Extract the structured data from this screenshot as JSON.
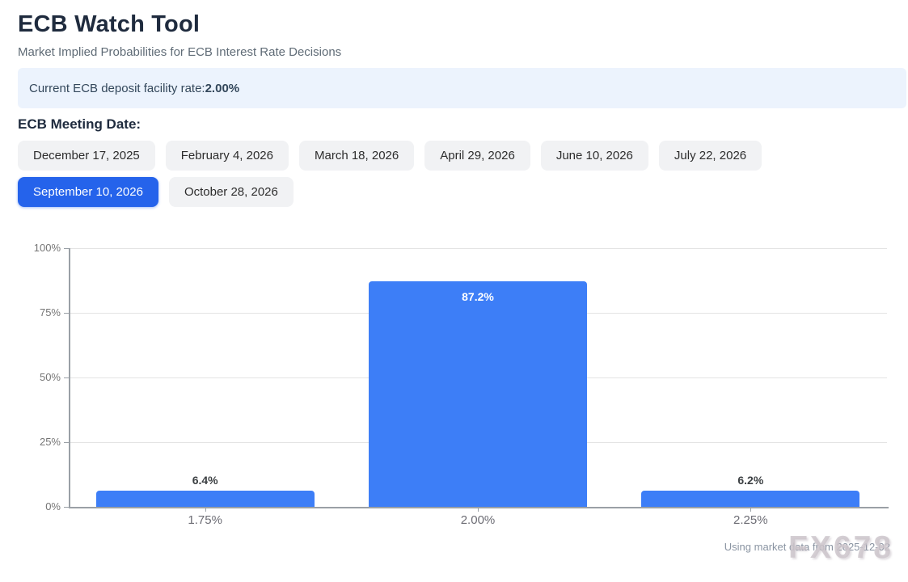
{
  "page": {
    "title": "ECB Watch Tool",
    "subtitle": "Market Implied Probabilities for ECB Interest Rate Decisions",
    "rate_banner": {
      "label": "Current ECB deposit facility rate: ",
      "value": "2.00%"
    },
    "meeting_section_label": "ECB Meeting Date:",
    "meeting_dates": [
      {
        "label": "December 17, 2025",
        "selected": false
      },
      {
        "label": "February 4, 2026",
        "selected": false
      },
      {
        "label": "March 18, 2026",
        "selected": false
      },
      {
        "label": "April 29, 2026",
        "selected": false
      },
      {
        "label": "June 10, 2026",
        "selected": false
      },
      {
        "label": "July 22, 2026",
        "selected": false
      },
      {
        "label": "September 10, 2026",
        "selected": true
      },
      {
        "label": "October 28, 2026",
        "selected": false
      }
    ],
    "footer_note": "Using market data from 2025-12-02",
    "watermark": "FX678"
  },
  "colors": {
    "bar": "#3d7ef7",
    "selected_button": "#2563eb",
    "banner_bg": "#ecf3fd",
    "value_label_dark": "#3c4043",
    "value_label_light": "#ffffff"
  },
  "chart_data": {
    "type": "bar",
    "title": "",
    "categories": [
      "1.75%",
      "2.00%",
      "2.25%"
    ],
    "values": [
      6.4,
      87.2,
      6.2
    ],
    "value_labels": [
      "6.4%",
      "87.2%",
      "6.2%"
    ],
    "xlabel": "",
    "ylabel": "",
    "ylim": [
      0,
      100
    ],
    "yticks": [
      0,
      25,
      50,
      75,
      100
    ],
    "ytick_labels": [
      "0%",
      "25%",
      "50%",
      "75%",
      "100%"
    ],
    "grid": true,
    "legend": "none"
  }
}
